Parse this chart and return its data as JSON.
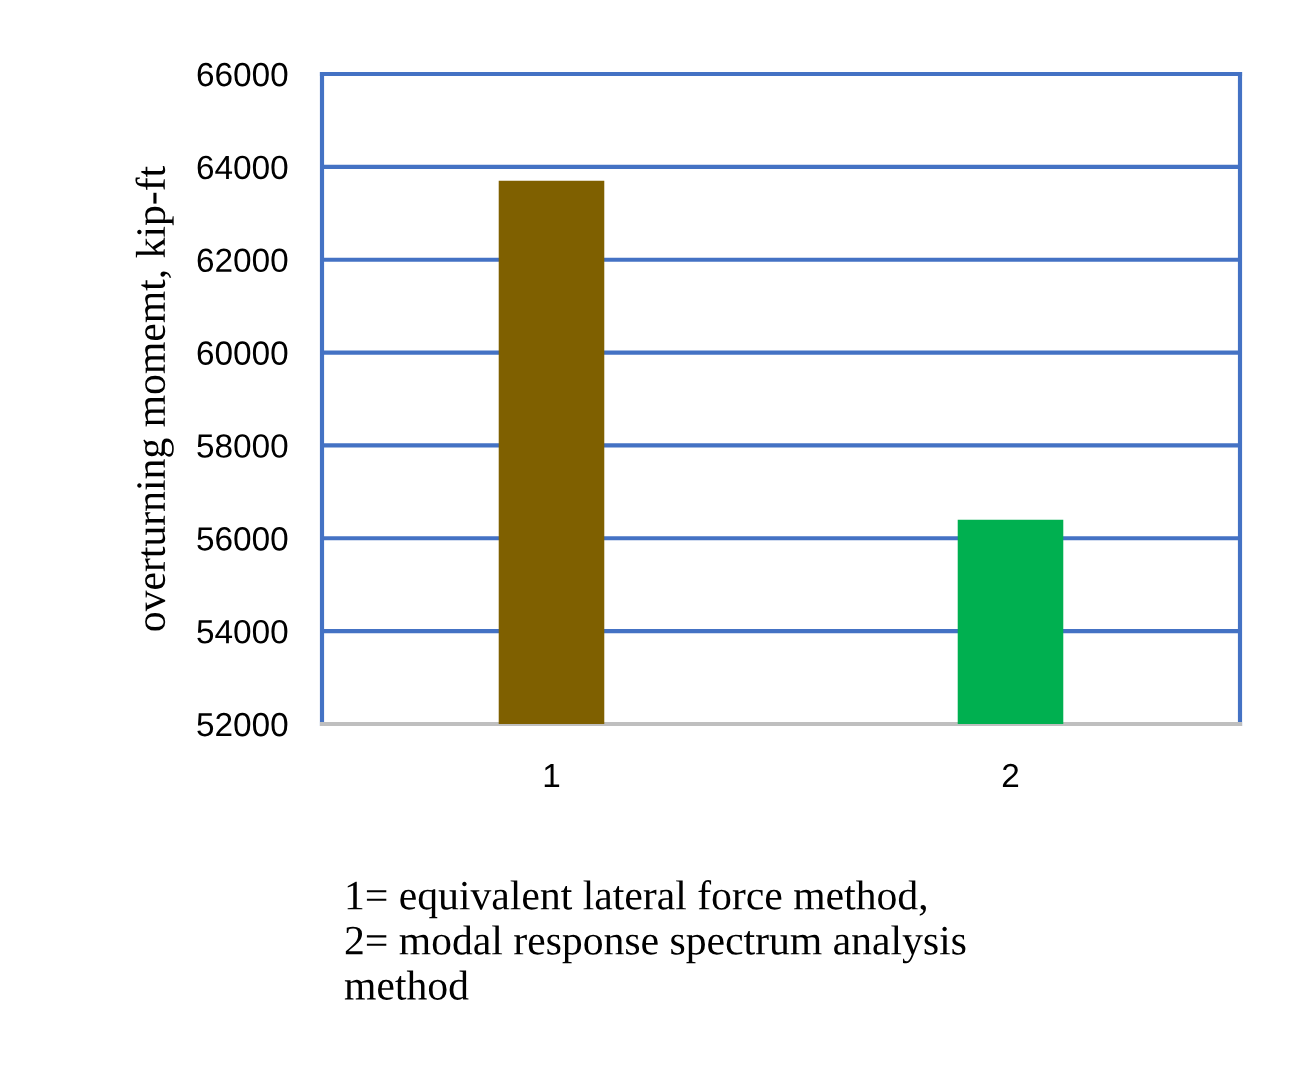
{
  "chart_data": {
    "type": "bar",
    "ylabel": "overturning momemt, kip-ft",
    "categories": [
      "1",
      "2"
    ],
    "values": [
      63700,
      56400
    ],
    "colors": [
      "#7f6000",
      "#00b050"
    ],
    "ylim": [
      52000,
      66000
    ],
    "yticks": [
      52000,
      54000,
      56000,
      58000,
      60000,
      62000,
      64000,
      66000
    ],
    "grid": "y",
    "legend": false,
    "annotations": [
      "1= equivalent lateral force method,\n2= modal response spectrum analysis\nmethod"
    ]
  }
}
